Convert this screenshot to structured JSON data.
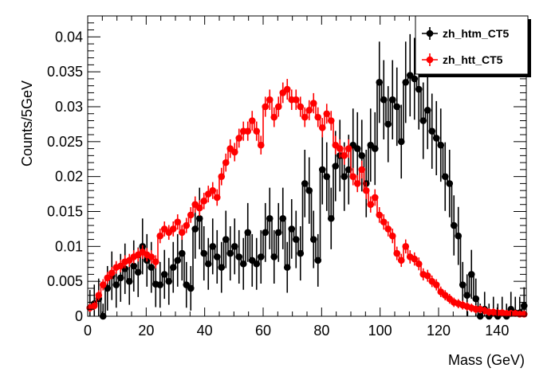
{
  "chart_data": {
    "type": "scatter",
    "xlabel": "Mass (GeV)",
    "ylabel": "Counts/5GeV",
    "xlim": [
      0,
      150
    ],
    "ylim": [
      0,
      0.043
    ],
    "x_ticks": [
      "0",
      "20",
      "40",
      "60",
      "80",
      "100",
      "120",
      "140"
    ],
    "y_ticks": [
      "0",
      "0.005",
      "0.01",
      "0.015",
      "0.02",
      "0.025",
      "0.03",
      "0.035",
      "0.04"
    ],
    "grid": false,
    "legend_position": "top-right",
    "x": [
      0.75,
      2.25,
      3.75,
      5.25,
      6.75,
      8.25,
      9.75,
      11.25,
      12.75,
      14.25,
      15.75,
      17.25,
      18.75,
      20.25,
      21.75,
      23.25,
      24.75,
      26.25,
      27.75,
      29.25,
      30.75,
      32.25,
      33.75,
      35.25,
      36.75,
      38.25,
      39.75,
      41.25,
      42.75,
      44.25,
      45.75,
      47.25,
      48.75,
      50.25,
      51.75,
      53.25,
      54.75,
      56.25,
      57.75,
      59.25,
      60.75,
      62.25,
      63.75,
      65.25,
      66.75,
      68.25,
      69.75,
      71.25,
      72.75,
      74.25,
      75.75,
      77.25,
      78.75,
      80.25,
      81.75,
      83.25,
      84.75,
      86.25,
      87.75,
      89.25,
      90.75,
      92.25,
      93.75,
      95.25,
      96.75,
      98.25,
      99.75,
      101.25,
      102.75,
      104.25,
      105.75,
      107.25,
      108.75,
      110.25,
      111.75,
      113.25,
      114.75,
      116.25,
      117.75,
      119.25,
      120.75,
      122.25,
      123.75,
      125.25,
      126.75,
      128.25,
      129.75,
      131.25,
      132.75,
      134.25,
      135.75,
      137.25,
      138.75,
      140.25,
      141.75,
      143.25,
      144.75,
      146.25,
      147.75,
      149.25
    ],
    "series": [
      {
        "name": "zh_htm_CT5",
        "color": "#000000",
        "values": [
          0.0012,
          0.0018,
          0.0025,
          0.0,
          0.004,
          0.0058,
          0.0045,
          0.0055,
          0.0068,
          0.005,
          0.0072,
          0.0063,
          0.01,
          0.008,
          0.007,
          0.0046,
          0.0045,
          0.006,
          0.005,
          0.007,
          0.008,
          0.009,
          0.0045,
          0.004,
          0.0125,
          0.014,
          0.009,
          0.0075,
          0.01,
          0.0085,
          0.007,
          0.011,
          0.009,
          0.01,
          0.0085,
          0.0075,
          0.012,
          0.008,
          0.0075,
          0.0085,
          0.012,
          0.014,
          0.0085,
          0.012,
          0.014,
          0.007,
          0.0125,
          0.011,
          0.009,
          0.019,
          0.018,
          0.011,
          0.008,
          0.021,
          0.02,
          0.014,
          0.0215,
          0.023,
          0.02,
          0.021,
          0.0245,
          0.024,
          0.023,
          0.019,
          0.0245,
          0.024,
          0.0335,
          0.031,
          0.0275,
          0.031,
          0.03,
          0.025,
          0.0335,
          0.0345,
          0.034,
          0.0325,
          0.028,
          0.0295,
          0.0265,
          0.0255,
          0.0245,
          0.02,
          0.019,
          0.013,
          0.0115,
          0.0045,
          0.003,
          0.006,
          0.0025,
          0.0,
          0.001,
          0.0,
          0.0005,
          0.0,
          0.0005,
          0.0,
          0.001,
          0.0005,
          0.0005,
          0.0015
        ]
      },
      {
        "name": "zh_htt_CT5",
        "color": "#ff0000",
        "values": [
          0.0012,
          0.0015,
          0.003,
          0.0045,
          0.0055,
          0.0062,
          0.007,
          0.0072,
          0.0078,
          0.008,
          0.0085,
          0.0088,
          0.0092,
          0.0088,
          0.0085,
          0.0078,
          0.0115,
          0.0125,
          0.012,
          0.0125,
          0.0135,
          0.012,
          0.013,
          0.0145,
          0.016,
          0.0155,
          0.0165,
          0.0175,
          0.018,
          0.017,
          0.02,
          0.022,
          0.024,
          0.0235,
          0.0255,
          0.0265,
          0.0265,
          0.028,
          0.0265,
          0.0245,
          0.03,
          0.031,
          0.0285,
          0.03,
          0.032,
          0.0325,
          0.031,
          0.031,
          0.03,
          0.0285,
          0.0295,
          0.0305,
          0.0285,
          0.027,
          0.029,
          0.028,
          0.0245,
          0.024,
          0.023,
          0.024,
          0.02,
          0.019,
          0.021,
          0.018,
          0.016,
          0.017,
          0.0145,
          0.0135,
          0.0125,
          0.0115,
          0.009,
          0.008,
          0.01,
          0.0085,
          0.0082,
          0.0075,
          0.006,
          0.0058,
          0.005,
          0.0045,
          0.0035,
          0.003,
          0.0025,
          0.002,
          0.0018,
          0.0016,
          0.0014,
          0.0012,
          0.001,
          0.001,
          0.0008,
          0.0006,
          0.0006,
          0.0005,
          0.0005,
          0.0004,
          0.0004,
          0.0004,
          0.0003,
          0.0003
        ]
      }
    ]
  }
}
